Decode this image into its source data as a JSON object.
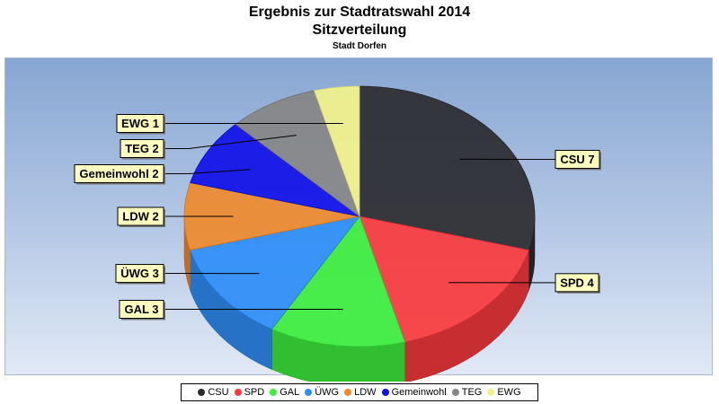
{
  "header": {
    "title": "Ergebnis zur Stadtratswahl 2014",
    "subtitle": "Sitzverteilung",
    "subtitle2": "Stadt Dorfen"
  },
  "chart_data": {
    "type": "pie",
    "title": "Ergebnis zur Stadtratswahl 2014",
    "subtitle": "Sitzverteilung",
    "caption": "Stadt Dorfen",
    "legend_position": "bottom",
    "slices": [
      {
        "name": "CSU",
        "value": 7,
        "label": "CSU 7",
        "color": "#2b2b30"
      },
      {
        "name": "SPD",
        "value": 4,
        "label": "SPD 4",
        "color": "#f83a3d"
      },
      {
        "name": "GAL",
        "value": 3,
        "label": "GAL 3",
        "color": "#3dee3d"
      },
      {
        "name": "ÜWG",
        "value": 3,
        "label": "ÜWG 3",
        "color": "#2e8ef8"
      },
      {
        "name": "LDW",
        "value": 2,
        "label": "LDW 2",
        "color": "#ee8a2e"
      },
      {
        "name": "Gemeinwohl",
        "value": 2,
        "label": "Gemeinwohl 2",
        "color": "#1010e8"
      },
      {
        "name": "TEG",
        "value": 2,
        "label": "TEG 2",
        "color": "#868686"
      },
      {
        "name": "EWG",
        "value": 1,
        "label": "EWG 1",
        "color": "#f2f28a"
      }
    ]
  }
}
